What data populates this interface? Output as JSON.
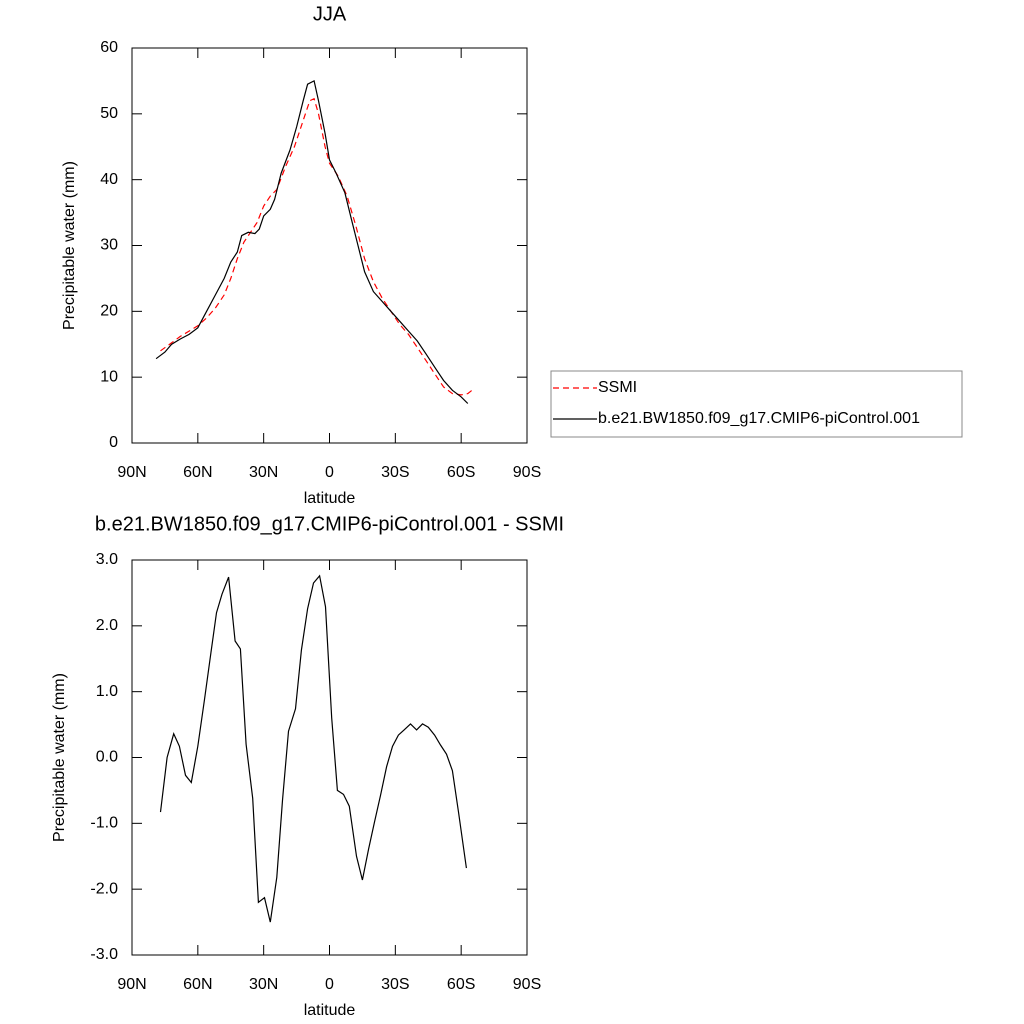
{
  "chart_data": [
    {
      "type": "line",
      "title": "JJA",
      "xlabel": "latitude",
      "ylabel": "Precipitable water (mm)",
      "xlim": [
        90,
        -90
      ],
      "ylim": [
        0,
        60
      ],
      "xticks": [
        {
          "value": 90,
          "label": "90N"
        },
        {
          "value": 60,
          "label": "60N"
        },
        {
          "value": 30,
          "label": "30N"
        },
        0,
        {
          "value": -30,
          "label": "30S"
        },
        {
          "value": -60,
          "label": "60S"
        },
        {
          "value": -90,
          "label": "90S"
        }
      ],
      "yticks": [
        0,
        10,
        20,
        30,
        40,
        50,
        60
      ],
      "legend": "right",
      "series": [
        {
          "name": "SSMI",
          "color": "#ff0000",
          "dashed": true,
          "x": [
            77,
            72,
            68,
            64,
            60,
            56,
            52,
            48,
            45,
            42,
            39,
            36,
            33,
            30,
            27,
            24,
            20,
            16,
            12,
            9,
            7,
            5,
            2,
            0,
            -4,
            -8,
            -12,
            -16,
            -20,
            -24,
            -28,
            -32,
            -36,
            -40,
            -44,
            -48,
            -52,
            -56,
            -60,
            -63,
            -66
          ],
          "values": [
            14,
            15.2,
            16.2,
            17,
            17.8,
            19,
            20.5,
            22.5,
            25,
            28,
            30.5,
            32,
            33.5,
            36,
            37.5,
            38.5,
            42,
            45,
            49,
            52,
            52.3,
            50,
            45,
            42.5,
            40.5,
            37.5,
            33,
            28,
            24.5,
            22,
            20,
            18,
            16.5,
            14.5,
            12.5,
            10.5,
            8.5,
            7.5,
            7.3,
            7.5,
            8.3
          ]
        },
        {
          "name": "b.e21.BW1850.f09_g17.CMIP6-piControl.001",
          "color": "#000000",
          "dashed": false,
          "x": [
            79,
            75,
            72,
            68,
            64,
            60,
            56,
            52,
            48,
            45,
            42,
            40,
            37,
            34,
            32,
            30,
            27,
            25,
            22,
            18,
            15,
            12,
            10,
            7,
            5,
            2,
            0,
            -3,
            -7,
            -10,
            -13,
            -16,
            -20,
            -24,
            -28,
            -32,
            -36,
            -40,
            -44,
            -48,
            -52,
            -56,
            -60,
            -63
          ],
          "values": [
            12.8,
            13.8,
            15,
            15.8,
            16.5,
            17.5,
            20,
            22.5,
            25,
            27.5,
            29,
            31.5,
            32,
            31.8,
            32.5,
            34.5,
            35.5,
            37,
            41,
            44.5,
            48,
            52,
            54.5,
            55,
            52,
            47,
            43,
            41,
            38,
            34,
            30,
            26,
            23,
            21.5,
            20,
            18.5,
            17,
            15.5,
            13.5,
            11.5,
            9.5,
            8,
            7,
            6
          ]
        }
      ]
    },
    {
      "type": "line",
      "title": "b.e21.BW1850.f09_g17.CMIP6-piControl.001 - SSMI",
      "xlabel": "latitude",
      "ylabel": "Precipitable water (mm)",
      "xlim": [
        90,
        -90
      ],
      "ylim": [
        -3,
        3
      ],
      "xticks": [
        {
          "value": 90,
          "label": "90N"
        },
        {
          "value": 60,
          "label": "60N"
        },
        {
          "value": 30,
          "label": "30N"
        },
        0,
        {
          "value": -30,
          "label": "30S"
        },
        {
          "value": -60,
          "label": "60S"
        },
        {
          "value": -90,
          "label": "90S"
        }
      ],
      "yticks": [
        {
          "value": -3,
          "label": "-3.0"
        },
        {
          "value": -2,
          "label": "-2.0"
        },
        {
          "value": -1,
          "label": "-1.0"
        },
        {
          "value": 0,
          "label": "0.0"
        },
        {
          "value": 1,
          "label": "1.0"
        },
        {
          "value": 2,
          "label": "2.0"
        },
        {
          "value": 3,
          "label": "3.0"
        }
      ],
      "series": [
        {
          "color": "#000000",
          "dashed": false,
          "x": [
            77,
            74,
            71,
            68.4,
            65.6,
            63,
            60,
            57,
            54,
            51.5,
            49,
            46,
            43,
            40.6,
            38,
            35,
            32.4,
            29.6,
            27,
            24,
            21.4,
            18.7,
            15.5,
            12.8,
            10,
            7.3,
            4.5,
            1.8,
            -1,
            -3.6,
            -6.4,
            -9,
            -12.3,
            -15,
            -17.8,
            -20.5,
            -23.3,
            -26,
            -28.7,
            -31.4,
            -34,
            -36.9,
            -39.7,
            -42.4,
            -45,
            -47.9,
            -50.6,
            -53.3,
            -56,
            -58.8,
            -62.4
          ],
          "values": [
            -0.83,
            0,
            0.36,
            0.17,
            -0.27,
            -0.38,
            0.17,
            0.87,
            1.6,
            2.2,
            2.48,
            2.74,
            1.77,
            1.65,
            0.2,
            -0.62,
            -2.2,
            -2.13,
            -2.5,
            -1.82,
            -0.65,
            0.4,
            0.74,
            1.63,
            2.26,
            2.65,
            2.76,
            2.29,
            0.6,
            -0.5,
            -0.56,
            -0.74,
            -1.5,
            -1.86,
            -1.39,
            -0.98,
            -0.57,
            -0.14,
            0.17,
            0.34,
            0.42,
            0.51,
            0.42,
            0.51,
            0.46,
            0.34,
            0.19,
            0.05,
            -0.2,
            -0.83,
            -1.68
          ]
        }
      ]
    }
  ]
}
